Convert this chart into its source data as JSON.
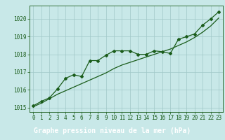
{
  "title": "Graphe pression niveau de la mer (hPa)",
  "x": [
    0,
    1,
    2,
    3,
    4,
    5,
    6,
    7,
    8,
    9,
    10,
    11,
    12,
    13,
    14,
    15,
    16,
    17,
    18,
    19,
    20,
    21,
    22,
    23
  ],
  "y_data": [
    1015.1,
    1015.35,
    1015.55,
    1016.05,
    1016.65,
    1016.85,
    1016.75,
    1017.65,
    1017.65,
    1017.95,
    1018.2,
    1018.2,
    1018.2,
    1018.0,
    1018.0,
    1018.2,
    1018.15,
    1018.05,
    1018.85,
    1019.0,
    1019.15,
    1019.65,
    1020.0,
    1020.4
  ],
  "y_smooth": [
    1015.05,
    1015.25,
    1015.5,
    1015.75,
    1015.95,
    1016.15,
    1016.35,
    1016.55,
    1016.75,
    1016.95,
    1017.2,
    1017.4,
    1017.55,
    1017.7,
    1017.85,
    1018.0,
    1018.15,
    1018.3,
    1018.5,
    1018.7,
    1018.95,
    1019.25,
    1019.6,
    1020.05
  ],
  "ylim": [
    1014.75,
    1020.75
  ],
  "xlim": [
    -0.5,
    23.5
  ],
  "yticks": [
    1015,
    1016,
    1017,
    1018,
    1019,
    1020
  ],
  "xticks": [
    0,
    1,
    2,
    3,
    4,
    5,
    6,
    7,
    8,
    9,
    10,
    11,
    12,
    13,
    14,
    15,
    16,
    17,
    18,
    19,
    20,
    21,
    22,
    23
  ],
  "line_color": "#1a5c1a",
  "bg_color": "#c8e8e8",
  "grid_color": "#a0c8c8",
  "title_bg_color": "#2d6b2d",
  "title_text_color": "#ffffff",
  "marker": "D",
  "marker_size": 2.0,
  "linewidth": 0.9,
  "tick_fontsize": 5.5,
  "title_fontsize": 7.0
}
